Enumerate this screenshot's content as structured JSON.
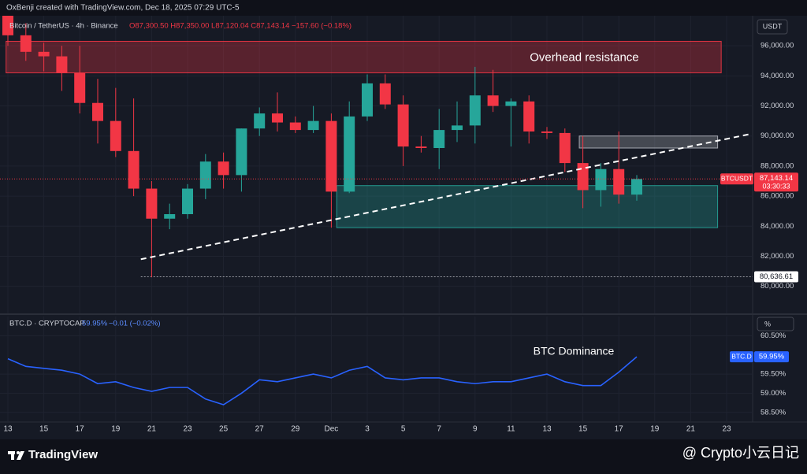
{
  "header": {
    "credit": "OxBenji created with TradingView.com, Dec 18, 2025 07:29 UTC-5"
  },
  "footer": {
    "brand": "TradingView",
    "watermark": "@ Crypto小云日记"
  },
  "chart_data": [
    {
      "type": "candlestick",
      "legend": "Bitcoin / TetherUS · 4h · Binance",
      "ohlc_text": "O87,300.50 H87,350.00 L87,120.04 C87,143.14 −157.60 (−0.18%)",
      "currency": "USDT",
      "symbol": "BTCUSDT",
      "last_label": "87,143.14",
      "countdown": "03:30:33",
      "up_color": "#26a69a",
      "down_color": "#f23645",
      "categories": [
        "13",
        null,
        "15",
        null,
        "17",
        null,
        "19",
        null,
        "21",
        null,
        "23",
        null,
        "25",
        null,
        "27",
        null,
        "29",
        null,
        "Dec",
        null,
        "3",
        null,
        "5",
        null,
        "7",
        null,
        "9",
        null,
        "11",
        null,
        "13",
        null,
        "15",
        null,
        "17",
        null,
        "19",
        null,
        "21",
        null,
        "23"
      ],
      "open": [
        98500,
        96700,
        95600,
        95300,
        94200,
        92200,
        91000,
        89000,
        86500,
        84500,
        84800,
        86500,
        88300,
        87400,
        90500,
        91500,
        90900,
        90400,
        91000,
        86300,
        91300,
        93500,
        92100,
        89300,
        89200,
        90400,
        90700,
        92700,
        92000,
        92300,
        90300,
        90200,
        88200,
        86400,
        87800,
        86100,
        null,
        null,
        null,
        null,
        null
      ],
      "high": [
        99000,
        97500,
        96200,
        96000,
        96000,
        93800,
        93200,
        92500,
        87000,
        85500,
        86800,
        88800,
        88900,
        90500,
        91900,
        92900,
        91300,
        92000,
        91500,
        92300,
        94100,
        94100,
        92700,
        90000,
        91800,
        92300,
        94600,
        94400,
        92500,
        92700,
        90600,
        90500,
        90000,
        88200,
        90300,
        87400,
        null,
        null,
        null,
        null,
        null
      ],
      "low": [
        96000,
        95000,
        94300,
        93000,
        91500,
        89500,
        88600,
        86000,
        80600,
        83800,
        84500,
        85800,
        86500,
        86300,
        90000,
        90300,
        90200,
        90200,
        83900,
        86200,
        91000,
        91800,
        88000,
        88900,
        87800,
        89600,
        89500,
        91600,
        89300,
        89500,
        89800,
        87600,
        85200,
        85300,
        85500,
        85700,
        null,
        null,
        null,
        null,
        null
      ],
      "close": [
        96700,
        95600,
        95300,
        94200,
        92200,
        91000,
        89000,
        86500,
        84500,
        84800,
        86500,
        88300,
        87400,
        90500,
        91500,
        90900,
        90400,
        91000,
        86300,
        91300,
        93500,
        92100,
        89300,
        89200,
        90400,
        90700,
        92700,
        92000,
        92300,
        90300,
        90200,
        88200,
        86400,
        87800,
        86100,
        87143.14,
        null,
        null,
        null,
        null,
        null
      ],
      "ylim": [
        78200,
        98000
      ],
      "yticks": [
        {
          "value": 80000,
          "label": "80,000.00"
        },
        {
          "value": 82000,
          "label": "82,000.00"
        },
        {
          "value": 84000,
          "label": "84,000.00"
        },
        {
          "value": 86000,
          "label": "86,000.00"
        },
        {
          "value": 88000,
          "label": "88,000.00"
        },
        {
          "value": 90000,
          "label": "90,000.00"
        },
        {
          "value": 92000,
          "label": "92,000.00"
        },
        {
          "value": 94000,
          "label": "94,000.00"
        },
        {
          "value": 96000,
          "label": "96,000.00"
        }
      ],
      "zones": [
        {
          "label": "Overhead resistance",
          "from": -0.1,
          "to": 39.7,
          "ylim": [
            94200,
            96300
          ],
          "color": "#f23645"
        },
        {
          "from": 18.3,
          "to": 39.5,
          "ylim": [
            83900,
            86700
          ],
          "color": "#26a69a"
        },
        {
          "from": 31.8,
          "to": 39.5,
          "ylim": [
            89200,
            90000
          ],
          "color": "#b2b5be"
        }
      ],
      "trendline": {
        "from": [
          7.4,
          81800
        ],
        "to": [
          41.4,
          90150
        ]
      },
      "low_line": {
        "value": 80636.61,
        "label": "80,636.61",
        "from": 7.4
      }
    },
    {
      "type": "line",
      "legend": "BTC.D · CRYPTOCAP",
      "legend_value": "59.95%",
      "legend_change": "−0.01 (−0.02%)",
      "annotation": "BTC Dominance",
      "unit": "%",
      "symbol": "BTC.D",
      "last_label": "59.95%",
      "color": "#2962ff",
      "values": [
        59.9,
        59.7,
        59.65,
        59.6,
        59.5,
        59.25,
        59.3,
        59.15,
        59.05,
        59.15,
        59.15,
        58.85,
        58.7,
        59.0,
        59.35,
        59.3,
        59.4,
        59.5,
        59.4,
        59.6,
        59.7,
        59.4,
        59.35,
        59.4,
        59.4,
        59.3,
        59.25,
        59.3,
        59.3,
        59.4,
        59.5,
        59.3,
        59.2,
        59.2,
        59.55,
        59.95,
        null,
        null,
        null,
        null,
        null
      ],
      "ylim": [
        58.27,
        61.0
      ],
      "yticks": [
        {
          "value": 58.5,
          "label": "58.50%"
        },
        {
          "value": 59,
          "label": "59.00%"
        },
        {
          "value": 59.5,
          "label": "59.50%"
        },
        {
          "value": 60.5,
          "label": "60.50%"
        }
      ]
    }
  ]
}
